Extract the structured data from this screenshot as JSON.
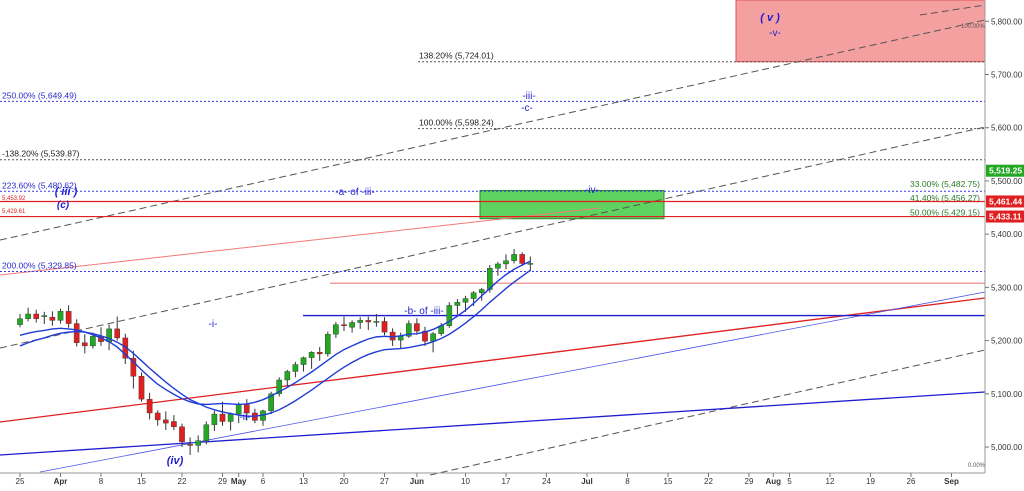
{
  "chart_data": {
    "type": "candlestick",
    "y_axis": {
      "range": [
        4970,
        5840
      ],
      "ticks": [
        "5,000.00",
        "5,100.00",
        "5,200.00",
        "5,300.00",
        "5,400.00",
        "5,500.00",
        "5,600.00",
        "5,700.00",
        "5,800.00"
      ],
      "tick_values": [
        5000,
        5100,
        5200,
        5300,
        5400,
        5500,
        5600,
        5700,
        5800
      ]
    },
    "x_axis": {
      "labels": [
        {
          "t": "25",
          "d": 0
        },
        {
          "t": "Apr",
          "d": 5
        },
        {
          "t": "8",
          "d": 10
        },
        {
          "t": "15",
          "d": 15
        },
        {
          "t": "22",
          "d": 20
        },
        {
          "t": "29",
          "d": 25
        },
        {
          "t": "May",
          "d": 27
        },
        {
          "t": "6",
          "d": 30
        },
        {
          "t": "13",
          "d": 35
        },
        {
          "t": "20",
          "d": 40
        },
        {
          "t": "27",
          "d": 45
        },
        {
          "t": "Jun",
          "d": 49
        },
        {
          "t": "10",
          "d": 55
        },
        {
          "t": "17",
          "d": 60
        },
        {
          "t": "24",
          "d": 65
        },
        {
          "t": "Jul",
          "d": 70
        },
        {
          "t": "8",
          "d": 75
        },
        {
          "t": "15",
          "d": 80
        },
        {
          "t": "22",
          "d": 85
        },
        {
          "t": "29",
          "d": 90
        },
        {
          "t": "Aug",
          "d": 93
        },
        {
          "t": "5",
          "d": 95
        },
        {
          "t": "12",
          "d": 100
        },
        {
          "t": "19",
          "d": 105
        },
        {
          "t": "26",
          "d": 110
        },
        {
          "t": "Sep",
          "d": 115
        }
      ]
    },
    "candles": [
      [
        5230,
        5250,
        5225,
        5241
      ],
      [
        5241,
        5262,
        5236,
        5250
      ],
      [
        5250,
        5258,
        5234,
        5241
      ],
      [
        5245,
        5254,
        5231,
        5247
      ],
      [
        5244,
        5255,
        5228,
        5238
      ],
      [
        5238,
        5260,
        5232,
        5255
      ],
      [
        5255,
        5266,
        5224,
        5232
      ],
      [
        5232,
        5240,
        5189,
        5196
      ],
      [
        5196,
        5212,
        5176,
        5190
      ],
      [
        5190,
        5215,
        5185,
        5208
      ],
      [
        5208,
        5225,
        5190,
        5198
      ],
      [
        5198,
        5230,
        5182,
        5222
      ],
      [
        5222,
        5245,
        5200,
        5205
      ],
      [
        5205,
        5213,
        5156,
        5167
      ],
      [
        5167,
        5181,
        5110,
        5133
      ],
      [
        5133,
        5140,
        5085,
        5090
      ],
      [
        5090,
        5102,
        5052,
        5064
      ],
      [
        5064,
        5069,
        5040,
        5051
      ],
      [
        5051,
        5067,
        5032,
        5045
      ],
      [
        5048,
        5060,
        5032,
        5038
      ],
      [
        5038,
        5044,
        5000,
        5010
      ],
      [
        5005,
        5018,
        4985,
        5003
      ],
      [
        5003,
        5022,
        4990,
        5012
      ],
      [
        5012,
        5048,
        5005,
        5042
      ],
      [
        5042,
        5068,
        5030,
        5062
      ],
      [
        5062,
        5085,
        5040,
        5048
      ],
      [
        5048,
        5065,
        5031,
        5062
      ],
      [
        5062,
        5084,
        5045,
        5080
      ],
      [
        5080,
        5090,
        5050,
        5064
      ],
      [
        5064,
        5072,
        5045,
        5050
      ],
      [
        5050,
        5070,
        5040,
        5068
      ],
      [
        5068,
        5104,
        5062,
        5100
      ],
      [
        5100,
        5131,
        5095,
        5126
      ],
      [
        5126,
        5145,
        5114,
        5142
      ],
      [
        5142,
        5160,
        5131,
        5155
      ],
      [
        5155,
        5170,
        5142,
        5168
      ],
      [
        5168,
        5180,
        5147,
        5178
      ],
      [
        5178,
        5188,
        5162,
        5175
      ],
      [
        5175,
        5217,
        5170,
        5212
      ],
      [
        5212,
        5235,
        5205,
        5230
      ],
      [
        5230,
        5245,
        5218,
        5228
      ],
      [
        5225,
        5238,
        5215,
        5234
      ],
      [
        5234,
        5244,
        5222,
        5238
      ],
      [
        5238,
        5245,
        5220,
        5235
      ],
      [
        5235,
        5250,
        5226,
        5236
      ],
      [
        5236,
        5244,
        5210,
        5216
      ],
      [
        5216,
        5223,
        5190,
        5201
      ],
      [
        5201,
        5215,
        5185,
        5208
      ],
      [
        5208,
        5238,
        5205,
        5232
      ],
      [
        5232,
        5242,
        5211,
        5218
      ],
      [
        5218,
        5226,
        5190,
        5199
      ],
      [
        5199,
        5216,
        5178,
        5213
      ],
      [
        5213,
        5233,
        5209,
        5228
      ],
      [
        5228,
        5272,
        5224,
        5266
      ],
      [
        5266,
        5278,
        5248,
        5272
      ],
      [
        5272,
        5284,
        5254,
        5279
      ],
      [
        5279,
        5293,
        5265,
        5290
      ],
      [
        5290,
        5299,
        5275,
        5296
      ],
      [
        5296,
        5342,
        5290,
        5336
      ],
      [
        5336,
        5348,
        5322,
        5344
      ],
      [
        5344,
        5362,
        5334,
        5350
      ],
      [
        5350,
        5372,
        5345,
        5362
      ],
      [
        5362,
        5366,
        5340,
        5345
      ],
      [
        5345,
        5358,
        5330,
        5345
      ]
    ],
    "moving_averages": [
      {
        "color": "#1e3cd8",
        "values": [
          5210,
          5214,
          5217,
          5219,
          5222,
          5223,
          5222,
          5220,
          5216,
          5211,
          5205,
          5198,
          5188,
          5174,
          5160,
          5145,
          5131,
          5118,
          5108,
          5099,
          5091,
          5085,
          5081,
          5080,
          5081,
          5082,
          5081,
          5080,
          5081,
          5084,
          5089,
          5096,
          5104,
          5112,
          5121,
          5131,
          5141,
          5152,
          5163,
          5174,
          5183,
          5190,
          5197,
          5203,
          5207,
          5208,
          5207,
          5209,
          5212,
          5213,
          5216,
          5221,
          5228,
          5236,
          5246,
          5257,
          5270,
          5284,
          5298,
          5312,
          5324,
          5334,
          5342,
          5349
        ]
      },
      {
        "color": "#1e3cd8",
        "values": [
          5190,
          5196,
          5201,
          5205,
          5210,
          5214,
          5216,
          5217,
          5216,
          5213,
          5209,
          5204,
          5197,
          5188,
          5176,
          5162,
          5148,
          5135,
          5122,
          5110,
          5099,
          5089,
          5082,
          5075,
          5070,
          5066,
          5063,
          5060,
          5058,
          5058,
          5060,
          5064,
          5070,
          5078,
          5087,
          5097,
          5107,
          5118,
          5129,
          5140,
          5150,
          5159,
          5167,
          5174,
          5179,
          5183,
          5184,
          5185,
          5187,
          5190,
          5193,
          5198,
          5204,
          5212,
          5222,
          5233,
          5245,
          5258,
          5272,
          5285,
          5298,
          5310,
          5321,
          5332
        ]
      }
    ],
    "horizontal_levels": [
      {
        "label": "138.20% (5,724.01)",
        "value": 5724.01
      },
      {
        "label": "250.00% (5,649.49)",
        "value": 5649.49
      },
      {
        "label": "100.00% (5,598.24)",
        "value": 5598.24
      },
      {
        "label": "-138.20% (5,539.87)",
        "value": 5539.87
      },
      {
        "label": "223.60% (5,480.62)",
        "value": 5480.62
      },
      {
        "label": "33.00% (5,482.75)",
        "value": 5482.75
      },
      {
        "label": "41.40% (5,456.27)",
        "value": 5456.27
      },
      {
        "label": "50.00% (5,429.15)",
        "value": 5429.15
      },
      {
        "label": "200.00% (5,329.85)",
        "value": 5329.85
      }
    ],
    "price_tags": [
      {
        "label": "5,519.25",
        "value": 5519.25
      },
      {
        "label": "5,461.44",
        "value": 5461.44
      },
      {
        "label": "5,433.11",
        "value": 5433.11
      }
    ],
    "small_labels": [
      "5,453.92",
      "5,429.61",
      "100.00%",
      "0.00%"
    ],
    "wave_labels": [
      {
        "text": "( v )",
        "color": "#1e1ed0",
        "italic": true
      },
      {
        "text": "-v-",
        "color": "#1e1ed0",
        "italic": false
      },
      {
        "text": "-iii-",
        "color": "#1e1ed0",
        "italic": false
      },
      {
        "text": "-c-",
        "color": "#1e1ed0",
        "italic": false
      },
      {
        "text": "-iv-",
        "color": "#1e1ed0",
        "italic": false
      },
      {
        "text": "( iii )",
        "color": "#1e1ed0",
        "italic": true
      },
      {
        "text": "(c)",
        "color": "#1e1ed0",
        "italic": true
      },
      {
        "text": "-a- of -iii-",
        "color": "#1e1ed0",
        "italic": false
      },
      {
        "text": "-b- of -iii-",
        "color": "#1e1ed0",
        "italic": false
      },
      {
        "text": "-i-",
        "color": "#1e1ed0",
        "italic": false
      },
      {
        "text": "-ii-",
        "color": "#1e1ed0",
        "italic": false
      },
      {
        "text": "(iv)",
        "color": "#1e1ed0",
        "italic": true
      }
    ],
    "zones": [
      {
        "name": "v-target-zone",
        "color": "#f4a0a0",
        "y": [
          5724,
          5840
        ]
      },
      {
        "name": "iv-support-zone",
        "color": "#5fd35f",
        "y": [
          5429,
          5482
        ]
      }
    ],
    "colors": {
      "up": "#22a822",
      "down": "#e02020",
      "ma": "#1e3cd8",
      "support": "#e02020",
      "trend": "#1e1ed0"
    }
  }
}
